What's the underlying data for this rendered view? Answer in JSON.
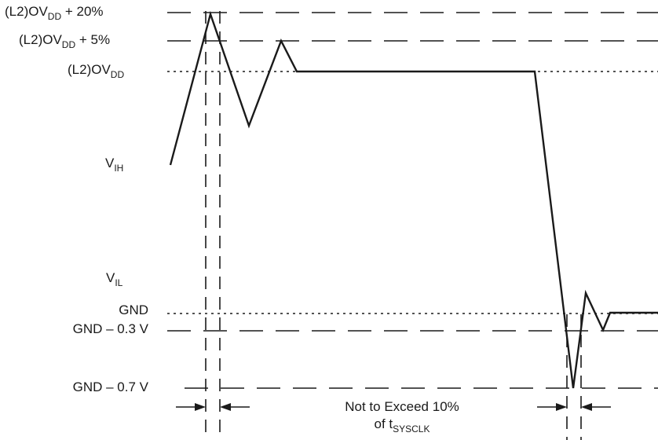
{
  "labels": {
    "l2_ovdd_20": {
      "prefix": "(L2)OV",
      "sub": "DD",
      "suffix": " + 20%"
    },
    "l2_ovdd_5": {
      "prefix": "(L2)OV",
      "sub": "DD",
      "suffix": " + 5%"
    },
    "l2_ovdd": {
      "prefix": "(L2)OV",
      "sub": "DD",
      "suffix": ""
    },
    "vih": {
      "prefix": "V",
      "sub": "IH"
    },
    "vil": {
      "prefix": "V",
      "sub": "IL"
    },
    "gnd": "GND",
    "gnd_03": "GND – 0.3 V",
    "gnd_07": "GND – 0.7 V",
    "note_line1": "Not to Exceed 10%",
    "note_line2": {
      "prefix": "of t",
      "sub": "SYSCLK"
    }
  },
  "colors": {
    "ink": "#1a1a1a",
    "background": "#ffffff"
  }
}
